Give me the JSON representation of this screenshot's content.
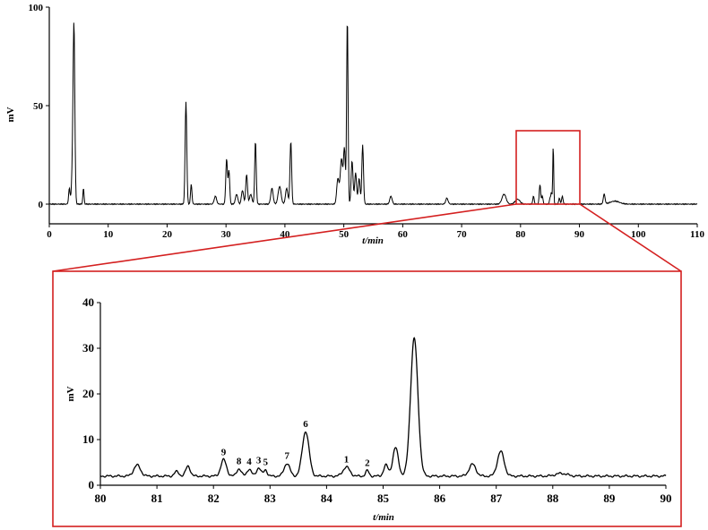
{
  "chart_data": [
    {
      "type": "line",
      "title": "",
      "xlabel": "t/min",
      "ylabel": "mV",
      "xlim": [
        0,
        110
      ],
      "ylim": [
        -10,
        100
      ],
      "x_ticks": [
        0,
        10,
        20,
        30,
        40,
        50,
        60,
        70,
        80,
        90,
        100,
        110
      ],
      "y_ticks": [
        0,
        50,
        100
      ],
      "baseline": 0,
      "peaks": [
        {
          "x": 3.4,
          "y": 8,
          "w": 0.12
        },
        {
          "x": 4.2,
          "y": 71,
          "w": 0.14
        },
        {
          "x": 4.05,
          "y": 28,
          "w": 0.2
        },
        {
          "x": 5.8,
          "y": 8,
          "w": 0.1
        },
        {
          "x": 23.2,
          "y": 52,
          "w": 0.14
        },
        {
          "x": 24.1,
          "y": 10,
          "w": 0.12
        },
        {
          "x": 28.2,
          "y": 4,
          "w": 0.2
        },
        {
          "x": 30.1,
          "y": 23,
          "w": 0.14
        },
        {
          "x": 30.5,
          "y": 17,
          "w": 0.13
        },
        {
          "x": 31.8,
          "y": 5,
          "w": 0.2
        },
        {
          "x": 32.8,
          "y": 7,
          "w": 0.18
        },
        {
          "x": 33.5,
          "y": 15,
          "w": 0.15
        },
        {
          "x": 34.2,
          "y": 5,
          "w": 0.2
        },
        {
          "x": 35.0,
          "y": 32,
          "w": 0.13
        },
        {
          "x": 37.8,
          "y": 8,
          "w": 0.2
        },
        {
          "x": 39.1,
          "y": 9,
          "w": 0.25
        },
        {
          "x": 40.3,
          "y": 8,
          "w": 0.2
        },
        {
          "x": 41.0,
          "y": 32,
          "w": 0.14
        },
        {
          "x": 49.0,
          "y": 13,
          "w": 0.2
        },
        {
          "x": 49.6,
          "y": 23,
          "w": 0.2
        },
        {
          "x": 50.1,
          "y": 28,
          "w": 0.16
        },
        {
          "x": 50.6,
          "y": 95,
          "w": 0.12
        },
        {
          "x": 51.4,
          "y": 22,
          "w": 0.16
        },
        {
          "x": 52.0,
          "y": 16,
          "w": 0.16
        },
        {
          "x": 52.6,
          "y": 13,
          "w": 0.16
        },
        {
          "x": 53.2,
          "y": 30,
          "w": 0.14
        },
        {
          "x": 58.0,
          "y": 4,
          "w": 0.2
        },
        {
          "x": 67.5,
          "y": 3,
          "w": 0.2
        },
        {
          "x": 77.2,
          "y": 5,
          "w": 0.35
        },
        {
          "x": 79.5,
          "y": 2.5,
          "w": 0.4
        },
        {
          "x": 82.2,
          "y": 4,
          "w": 0.12
        },
        {
          "x": 83.3,
          "y": 10,
          "w": 0.12
        },
        {
          "x": 83.7,
          "y": 4,
          "w": 0.12
        },
        {
          "x": 85.0,
          "y": 3,
          "w": 0.1
        },
        {
          "x": 85.25,
          "y": 6,
          "w": 0.1
        },
        {
          "x": 85.55,
          "y": 30,
          "w": 0.08
        },
        {
          "x": 86.6,
          "y": 3,
          "w": 0.12
        },
        {
          "x": 87.1,
          "y": 4,
          "w": 0.12
        },
        {
          "x": 94.2,
          "y": 5,
          "w": 0.15
        },
        {
          "x": 96.0,
          "y": 1.5,
          "w": 0.8
        }
      ]
    },
    {
      "type": "line",
      "title": "",
      "xlabel": "t/min",
      "ylabel": "mV",
      "xlim": [
        80,
        90
      ],
      "ylim": [
        0,
        40
      ],
      "x_ticks": [
        80,
        81,
        82,
        83,
        84,
        85,
        86,
        87,
        88,
        89,
        90
      ],
      "y_ticks": [
        0,
        10,
        20,
        30,
        40
      ],
      "baseline": 2.0,
      "peaks": [
        {
          "x": 80.65,
          "y": 2.4,
          "w": 0.06,
          "label": ""
        },
        {
          "x": 81.35,
          "y": 1.0,
          "w": 0.04,
          "label": ""
        },
        {
          "x": 81.55,
          "y": 2.2,
          "w": 0.04,
          "label": ""
        },
        {
          "x": 82.18,
          "y": 3.6,
          "w": 0.05,
          "label": "9"
        },
        {
          "x": 82.45,
          "y": 1.6,
          "w": 0.04,
          "label": "8"
        },
        {
          "x": 82.63,
          "y": 1.5,
          "w": 0.04,
          "label": "4"
        },
        {
          "x": 82.8,
          "y": 1.8,
          "w": 0.04,
          "label": "3"
        },
        {
          "x": 82.92,
          "y": 1.4,
          "w": 0.03,
          "label": "5"
        },
        {
          "x": 83.3,
          "y": 2.8,
          "w": 0.05,
          "label": "7"
        },
        {
          "x": 83.63,
          "y": 9.8,
          "w": 0.06,
          "label": "6"
        },
        {
          "x": 84.35,
          "y": 2.0,
          "w": 0.06,
          "label": "1"
        },
        {
          "x": 84.72,
          "y": 1.2,
          "w": 0.03,
          "label": "2"
        },
        {
          "x": 85.05,
          "y": 2.4,
          "w": 0.04,
          "label": ""
        },
        {
          "x": 85.22,
          "y": 6.2,
          "w": 0.05,
          "label": ""
        },
        {
          "x": 85.55,
          "y": 30.2,
          "w": 0.065,
          "label": ""
        },
        {
          "x": 86.58,
          "y": 2.6,
          "w": 0.06,
          "label": ""
        },
        {
          "x": 87.08,
          "y": 5.4,
          "w": 0.06,
          "label": ""
        },
        {
          "x": 88.15,
          "y": 0.6,
          "w": 0.1,
          "label": ""
        }
      ]
    }
  ]
}
